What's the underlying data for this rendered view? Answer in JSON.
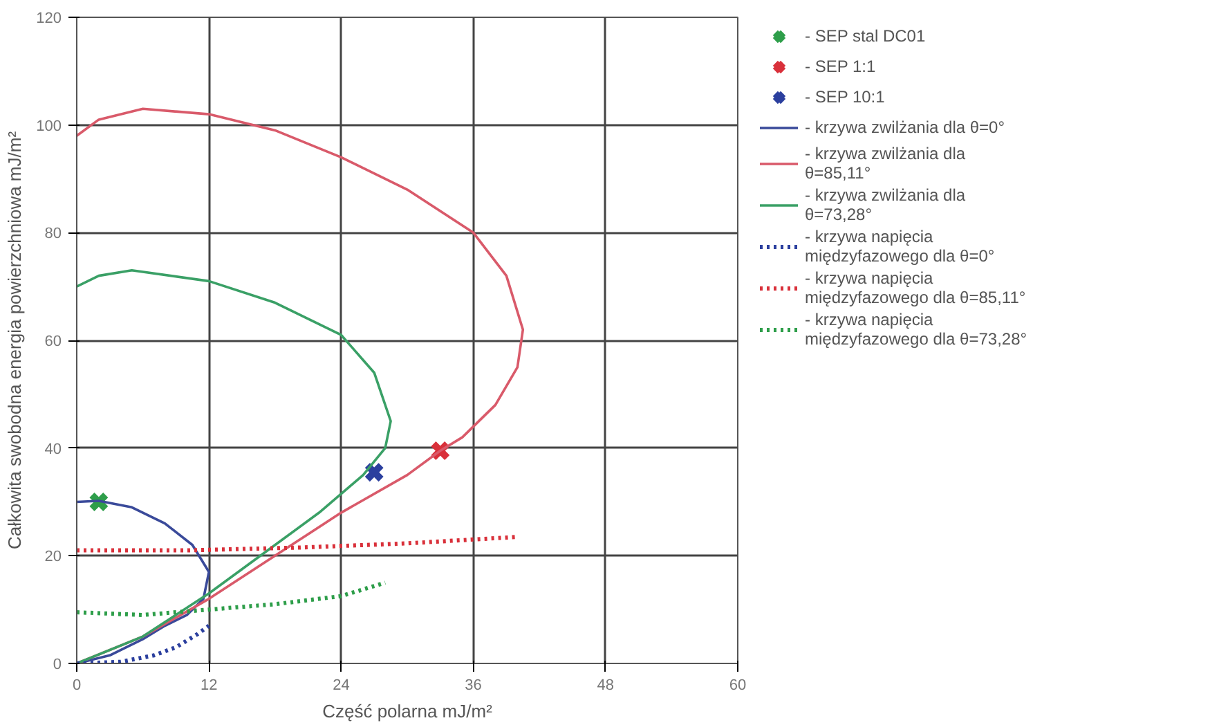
{
  "chart_data": {
    "type": "line",
    "xlabel": "Część polarna mJ/m²",
    "ylabel": "Całkowita swobodna energia powierzchniowa mJ/m²",
    "xlim": [
      0,
      60
    ],
    "xticks": [
      0,
      12,
      24,
      36,
      48,
      60
    ],
    "ylim": [
      0,
      120
    ],
    "yticks": [
      0,
      20,
      40,
      60,
      80,
      100,
      120
    ],
    "grid": true,
    "legend": "right",
    "series": [
      {
        "name": "- SEP stal DC01",
        "type": "scatter",
        "marker": "cross",
        "color": "#2e9e4a",
        "x": [
          2
        ],
        "values": [
          30
        ]
      },
      {
        "name": "- SEP 1:1",
        "type": "scatter",
        "marker": "cross",
        "color": "#d9303a",
        "x": [
          33
        ],
        "values": [
          39.5
        ]
      },
      {
        "name": "- SEP 10:1",
        "type": "scatter",
        "marker": "cross",
        "color": "#2b3f9e",
        "x": [
          27
        ],
        "values": [
          35.5
        ]
      },
      {
        "name": "- krzywa zwilżania dla θ=0°",
        "line_style": "solid",
        "color": "#3a4a9a",
        "x": [
          0,
          2,
          5,
          8,
          10.5,
          12,
          11.5,
          10,
          8,
          6,
          3,
          0
        ],
        "values": [
          30,
          30.2,
          29,
          26,
          22,
          17,
          12,
          9,
          7,
          4.5,
          1.5,
          0
        ]
      },
      {
        "name": "- krzywa zwilżania dla θ=85,11°",
        "line_style": "solid",
        "color": "#d95a6a",
        "x": [
          0,
          2,
          6,
          12,
          18,
          24,
          30,
          36,
          39,
          40.5,
          40,
          38,
          35,
          33,
          30,
          24,
          18,
          12,
          6,
          0
        ],
        "values": [
          98,
          101,
          103,
          102,
          99,
          94,
          88,
          80,
          72,
          62,
          55,
          48,
          42,
          39.5,
          35,
          28,
          20,
          12,
          5,
          0
        ]
      },
      {
        "name": "- krzywa zwilżania dla θ=73,28°",
        "line_style": "solid",
        "color": "#3aa066",
        "x": [
          0,
          2,
          5,
          12,
          18,
          24,
          27,
          28.5,
          28,
          26,
          22,
          18,
          12,
          6,
          0
        ],
        "values": [
          70,
          72,
          73,
          71,
          67,
          61,
          54,
          45,
          40,
          35,
          28,
          22,
          13,
          5,
          0
        ]
      },
      {
        "name": "- krzywa napięcia międzyfazowego dla θ=0°",
        "line_style": "dotted",
        "color": "#2b3f9e",
        "x": [
          0,
          4,
          7,
          9,
          11,
          12
        ],
        "values": [
          0,
          0.3,
          1.5,
          3,
          5.5,
          7
        ]
      },
      {
        "name": "- krzywa napięcia międzyfazowego dla θ=85,11°",
        "line_style": "dotted",
        "color": "#d9303a",
        "x": [
          0,
          10,
          20,
          30,
          40
        ],
        "values": [
          21,
          21,
          21.5,
          22.3,
          23.5
        ]
      },
      {
        "name": "- krzywa napięcia międzyfazowego dla θ=73,28°",
        "line_style": "dotted",
        "color": "#2e9e4a",
        "x": [
          0,
          6,
          12,
          18,
          24,
          28
        ],
        "values": [
          9.5,
          9,
          10,
          11,
          12.5,
          15
        ]
      }
    ]
  }
}
